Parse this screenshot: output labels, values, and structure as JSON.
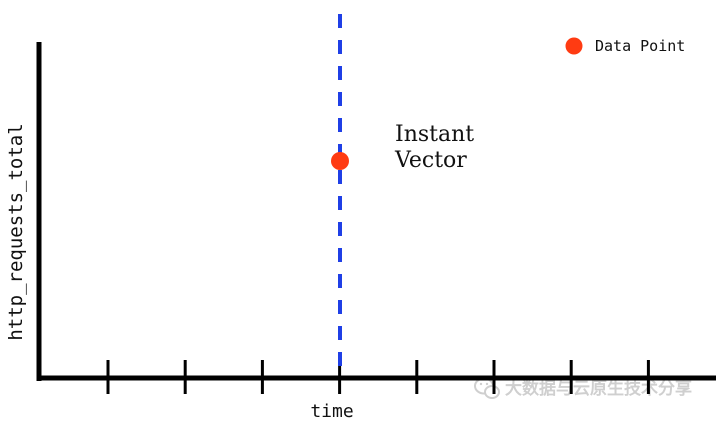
{
  "diagram": {
    "y_axis_label": "http_requests_total",
    "x_axis_label": "time",
    "legend": {
      "label": "Data Point",
      "color": "#ff3b12"
    },
    "annotation": {
      "line1": "Instant",
      "line2": "Vector"
    },
    "instant_line_color": "#1f3fe6",
    "point_color": "#ff3b12",
    "axis_color": "#000000",
    "tick_count": 8
  },
  "watermark": {
    "text": "大数据与云原生技术分享",
    "icon": "wechat-icon"
  }
}
